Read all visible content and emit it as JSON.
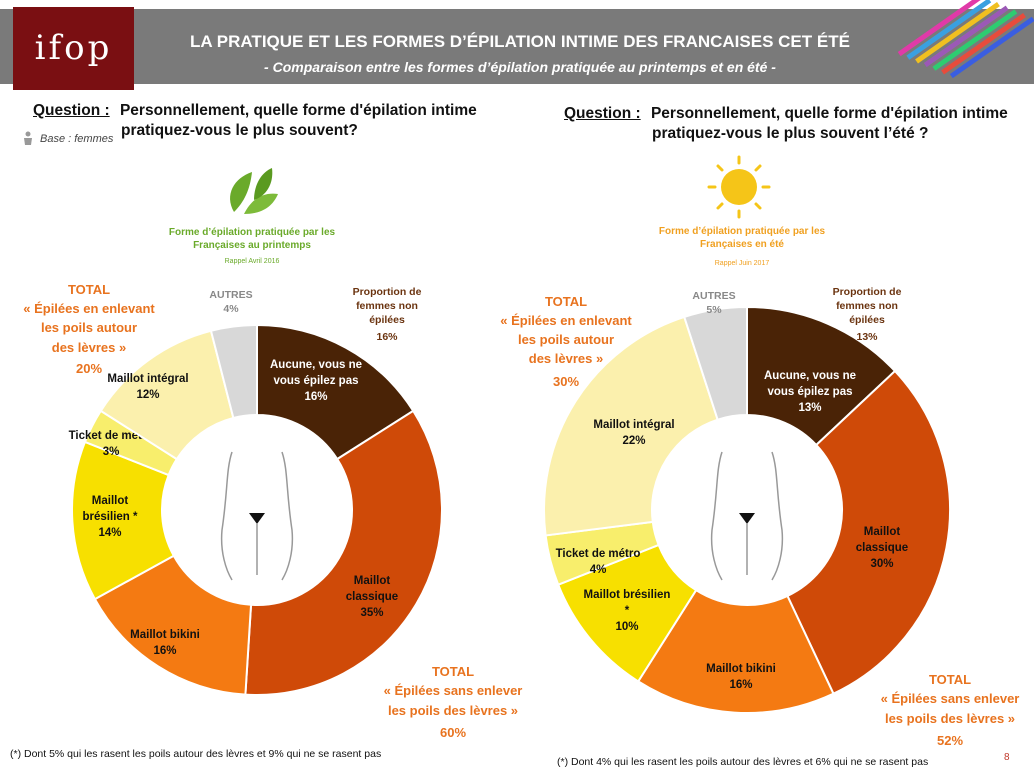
{
  "header": {
    "logo": "ifop",
    "title": "LA PRATIQUE ET LES FORMES D’ÉPILATION INTIME DES FRANCAISES CET ÉTÉ",
    "subtitle": "- Comparaison entre les formes d’épilation pratiquée au printemps et en été -"
  },
  "left": {
    "question_label": "Question :",
    "question_line1": "Personnellement, quelle forme d'épilation intime",
    "question_line2": "pratiquez-vous le plus souvent?",
    "base": "Base : femmes",
    "caption_line1": "Forme d’épilation pratiquée par les",
    "caption_line2": "Françaises au printemps",
    "recall": "Rappel Avril 2016",
    "total_levres": [
      "TOTAL",
      "« Épilées en enlevant",
      "les poils autour",
      "des lèvres »",
      "20%"
    ],
    "total_sans": [
      "TOTAL",
      "« Épilées sans enlever",
      "les poils des lèvres »",
      "60%"
    ],
    "autres": [
      "AUTRES",
      "4%"
    ],
    "proportion": [
      "Proportion de",
      "femmes non",
      "épilées",
      "16%"
    ],
    "footnote": "(*) Dont 5% qui les rasent les poils autour des lèvres et 9% qui ne se rasent pas"
  },
  "right": {
    "question_label": "Question :",
    "question_line1": "Personnellement, quelle forme d'épilation intime",
    "question_line2": "pratiquez-vous le plus souvent l’été ?",
    "caption_line1": "Forme d’épilation pratiquée par les",
    "caption_line2": "Françaises en été",
    "recall": "Rappel Juin 2017",
    "total_levres": [
      "TOTAL",
      "« Épilées en enlevant",
      "les poils autour",
      "des lèvres »",
      "30%"
    ],
    "total_sans": [
      "TOTAL",
      "« Épilées sans enlever",
      "les poils des lèvres »",
      "52%"
    ],
    "autres": [
      "AUTRES",
      "5%"
    ],
    "proportion": [
      "Proportion de",
      "femmes non",
      "épilées",
      "13%"
    ],
    "footnote": "(*) Dont 4% qui les rasent les poils autour des lèvres et 6% qui ne se rasent pas"
  },
  "page_number": "8",
  "colors": {
    "header_bg": "#7a7a7a",
    "logo_bg": "#7a0f12",
    "total_orange": "#e8731f",
    "caption_green": "#6aaa2a",
    "caption_orange": "#f0a020",
    "autres_gray": "#888888",
    "proportion_brown": "#6b3410"
  },
  "chart_data": [
    {
      "type": "pie",
      "subtype": "donut",
      "slices": [
        {
          "label": [
            "Aucune, vous ne",
            "vous épilez pas"
          ],
          "value": 16,
          "display": "16%",
          "color": "#4a2306"
        },
        {
          "label": [
            "Maillot",
            "classique"
          ],
          "value": 35,
          "display": "35%",
          "color": "#cf4a08"
        },
        {
          "label": [
            "Maillot bikini"
          ],
          "value": 16,
          "display": "16%",
          "color": "#f47a12"
        },
        {
          "label": [
            "Maillot",
            "brésilien *"
          ],
          "value": 14,
          "display": "14%",
          "color": "#f7e000"
        },
        {
          "label": [
            "Ticket de métro"
          ],
          "value": 3,
          "display": "3%",
          "color": "#f8ee6c"
        },
        {
          "label": [
            "Maillot intégral"
          ],
          "value": 12,
          "display": "12%",
          "color": "#fbf0ad"
        },
        {
          "label": [
            "AUTRES"
          ],
          "value": 4,
          "display": "4%",
          "color": "#d8d8d8"
        }
      ]
    },
    {
      "type": "pie",
      "subtype": "donut",
      "slices": [
        {
          "label": [
            "Aucune, vous ne",
            "vous épilez pas"
          ],
          "value": 13,
          "display": "13%",
          "color": "#4a2306"
        },
        {
          "label": [
            "Maillot",
            "classique"
          ],
          "value": 30,
          "display": "30%",
          "color": "#cf4a08"
        },
        {
          "label": [
            "Maillot bikini"
          ],
          "value": 16,
          "display": "16%",
          "color": "#f47a12"
        },
        {
          "label": [
            "Maillot brésilien",
            "*"
          ],
          "value": 10,
          "display": "10%",
          "color": "#f7e000"
        },
        {
          "label": [
            "Ticket de métro"
          ],
          "value": 4,
          "display": "4%",
          "color": "#f8ee6c"
        },
        {
          "label": [
            "Maillot intégral"
          ],
          "value": 22,
          "display": "22%",
          "color": "#fbf0ad"
        },
        {
          "label": [
            "AUTRES"
          ],
          "value": 5,
          "display": "5%",
          "color": "#d8d8d8"
        }
      ]
    }
  ]
}
